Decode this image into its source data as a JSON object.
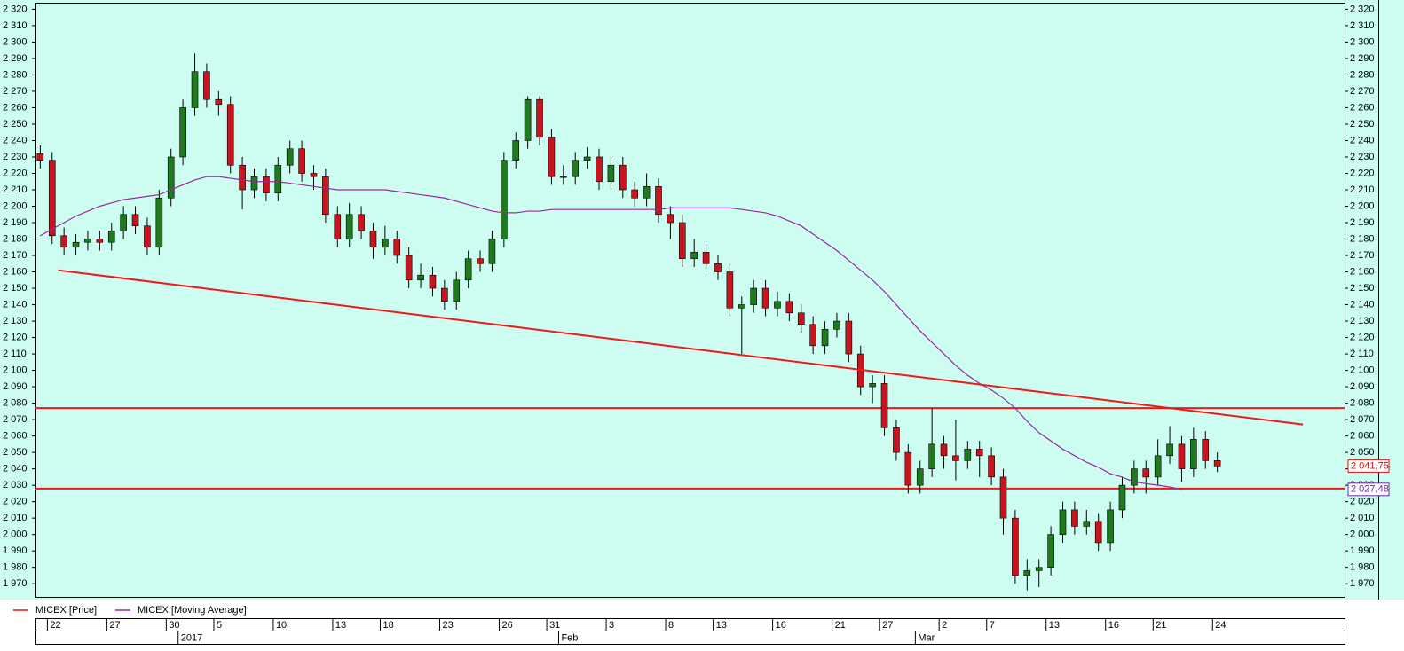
{
  "chart_data": {
    "type": "candlestick",
    "categories": [
      null,
      "22",
      null,
      null,
      null,
      null,
      "27",
      null,
      null,
      null,
      null,
      "30",
      null,
      null,
      null,
      "5",
      null,
      null,
      null,
      null,
      "10",
      null,
      null,
      null,
      null,
      "13",
      null,
      null,
      null,
      "18",
      null,
      null,
      null,
      null,
      "23",
      null,
      null,
      null,
      null,
      "26",
      null,
      null,
      null,
      "31",
      null,
      null,
      null,
      null,
      "3",
      null,
      null,
      null,
      null,
      "8",
      null,
      null,
      null,
      "13",
      null,
      null,
      null,
      null,
      "16",
      null,
      null,
      null,
      null,
      "21",
      null,
      null,
      null,
      "27",
      null,
      null,
      null,
      null,
      "2",
      null,
      null,
      null,
      "7",
      null,
      null,
      null,
      null,
      "13",
      null,
      null,
      null,
      null,
      "16",
      null,
      null,
      null,
      "21",
      null,
      null,
      null,
      null,
      "24"
    ],
    "months": [
      null,
      null,
      null,
      null,
      null,
      null,
      null,
      null,
      null,
      null,
      null,
      null,
      "2017",
      null,
      null,
      null,
      null,
      null,
      null,
      null,
      null,
      null,
      null,
      null,
      null,
      null,
      null,
      null,
      null,
      null,
      null,
      null,
      null,
      null,
      null,
      null,
      null,
      null,
      null,
      null,
      null,
      null,
      null,
      null,
      "Feb",
      null,
      null,
      null,
      null,
      null,
      null,
      null,
      null,
      null,
      null,
      null,
      null,
      null,
      null,
      null,
      null,
      null,
      null,
      null,
      null,
      null,
      null,
      null,
      null,
      null,
      null,
      null,
      null,
      null,
      "Mar",
      null,
      null,
      null,
      null,
      null,
      null,
      null,
      null,
      null,
      null,
      null,
      null,
      null,
      null,
      null,
      null,
      null,
      null,
      null,
      null,
      null,
      null,
      null,
      null,
      null
    ],
    "xlim": [
      -0.4,
      109.7
    ],
    "ylim": [
      1962,
      2324
    ],
    "yticks": [
      {
        "value": 1970,
        "label": "1 970"
      },
      {
        "value": 1980,
        "label": "1 980"
      },
      {
        "value": 1990,
        "label": "1 990"
      },
      {
        "value": 2000,
        "label": "2 000"
      },
      {
        "value": 2010,
        "label": "2 010"
      },
      {
        "value": 2020,
        "label": "2 020"
      },
      {
        "value": 2030,
        "label": "2 030"
      },
      {
        "value": 2040,
        "label": "2 040"
      },
      {
        "value": 2050,
        "label": "2 050"
      },
      {
        "value": 2060,
        "label": "2 060"
      },
      {
        "value": 2070,
        "label": "2 070"
      },
      {
        "value": 2080,
        "label": "2 080"
      },
      {
        "value": 2090,
        "label": "2 090"
      },
      {
        "value": 2100,
        "label": "2 100"
      },
      {
        "value": 2110,
        "label": "2 110"
      },
      {
        "value": 2120,
        "label": "2 120"
      },
      {
        "value": 2130,
        "label": "2 130"
      },
      {
        "value": 2140,
        "label": "2 140"
      },
      {
        "value": 2150,
        "label": "2 150"
      },
      {
        "value": 2160,
        "label": "2 160"
      },
      {
        "value": 2170,
        "label": "2 170"
      },
      {
        "value": 2180,
        "label": "2 180"
      },
      {
        "value": 2190,
        "label": "2 190"
      },
      {
        "value": 2200,
        "label": "2 200"
      },
      {
        "value": 2210,
        "label": "2 210"
      },
      {
        "value": 2220,
        "label": "2 220"
      },
      {
        "value": 2230,
        "label": "2 230"
      },
      {
        "value": 2240,
        "label": "2 240"
      },
      {
        "value": 2250,
        "label": "2 250"
      },
      {
        "value": 2260,
        "label": "2 260"
      },
      {
        "value": 2270,
        "label": "2 270"
      },
      {
        "value": 2280,
        "label": "2 280"
      },
      {
        "value": 2290,
        "label": "2 290"
      },
      {
        "value": 2300,
        "label": "2 300"
      },
      {
        "value": 2310,
        "label": "2 310"
      },
      {
        "value": 2320,
        "label": "2 320"
      }
    ],
    "up_color": "#1f7a1f",
    "down_color": "#c8141e",
    "series": [
      {
        "name": "MICEX [Price]",
        "color": "#e01010",
        "open": [
          2232,
          2228,
          2182,
          2175,
          2178,
          2180,
          2178,
          2185,
          2195,
          2188,
          2175,
          2205,
          2230,
          2260,
          2282,
          2265,
          2262,
          2225,
          2210,
          2218,
          2208,
          2225,
          2235,
          2220,
          2218,
          2195,
          2180,
          2195,
          2185,
          2175,
          2180,
          2170,
          2155,
          2158,
          2150,
          2142,
          2155,
          2168,
          2165,
          2180,
          2228,
          2240,
          2265,
          2242,
          2218,
          2218,
          2228,
          2230,
          2215,
          2225,
          2210,
          2205,
          2212,
          2195,
          2190,
          2168,
          2172,
          2165,
          2160,
          2138,
          2140,
          2150,
          2138,
          2142,
          2135,
          2128,
          2115,
          2125,
          2130,
          2110,
          2090,
          2092,
          2065,
          2050,
          2030,
          2040,
          2055,
          2048,
          2045,
          2052,
          2048,
          2035,
          2010,
          1975,
          1978,
          1980,
          2000,
          2015,
          2005,
          2008,
          1995,
          2015,
          2030,
          2040,
          2035,
          2048,
          2055,
          2040,
          2058,
          2045
        ],
        "high": [
          2237,
          2233,
          2187,
          2183,
          2185,
          2185,
          2190,
          2200,
          2200,
          2193,
          2210,
          2235,
          2265,
          2293,
          2287,
          2270,
          2267,
          2230,
          2223,
          2223,
          2230,
          2240,
          2240,
          2225,
          2223,
          2200,
          2202,
          2200,
          2190,
          2188,
          2185,
          2175,
          2165,
          2163,
          2155,
          2160,
          2173,
          2173,
          2185,
          2233,
          2245,
          2267,
          2267,
          2247,
          2225,
          2233,
          2236,
          2235,
          2230,
          2230,
          2215,
          2220,
          2217,
          2200,
          2195,
          2180,
          2177,
          2170,
          2165,
          2145,
          2155,
          2155,
          2148,
          2147,
          2140,
          2133,
          2130,
          2135,
          2135,
          2115,
          2097,
          2097,
          2070,
          2055,
          2045,
          2077,
          2060,
          2070,
          2057,
          2057,
          2053,
          2040,
          2015,
          1985,
          1985,
          2005,
          2020,
          2020,
          2015,
          2013,
          2020,
          2035,
          2045,
          2045,
          2058,
          2066,
          2060,
          2065,
          2063,
          2050
        ],
        "low": [
          2223,
          2177,
          2170,
          2170,
          2173,
          2173,
          2173,
          2180,
          2183,
          2170,
          2170,
          2200,
          2225,
          2255,
          2260,
          2255,
          2220,
          2198,
          2205,
          2203,
          2203,
          2220,
          2215,
          2210,
          2190,
          2175,
          2175,
          2180,
          2168,
          2170,
          2165,
          2150,
          2150,
          2145,
          2137,
          2137,
          2150,
          2160,
          2160,
          2175,
          2223,
          2235,
          2237,
          2213,
          2213,
          2213,
          2223,
          2210,
          2210,
          2205,
          2200,
          2200,
          2190,
          2180,
          2163,
          2163,
          2160,
          2155,
          2133,
          2110,
          2135,
          2133,
          2133,
          2130,
          2123,
          2110,
          2110,
          2120,
          2105,
          2085,
          2080,
          2060,
          2045,
          2025,
          2025,
          2035,
          2040,
          2033,
          2040,
          2035,
          2030,
          2000,
          1970,
          1966,
          1968,
          1975,
          1995,
          2000,
          2000,
          1990,
          1990,
          2010,
          2025,
          2025,
          2030,
          2043,
          2032,
          2035,
          2040,
          2038
        ],
        "close": [
          2228,
          2182,
          2175,
          2178,
          2180,
          2178,
          2185,
          2195,
          2188,
          2175,
          2205,
          2230,
          2260,
          2282,
          2265,
          2262,
          2225,
          2210,
          2218,
          2208,
          2225,
          2235,
          2220,
          2218,
          2195,
          2180,
          2195,
          2185,
          2175,
          2180,
          2170,
          2155,
          2158,
          2150,
          2142,
          2155,
          2168,
          2165,
          2180,
          2228,
          2240,
          2265,
          2242,
          2218,
          2218,
          2228,
          2230,
          2215,
          2225,
          2210,
          2205,
          2212,
          2195,
          2190,
          2168,
          2172,
          2165,
          2160,
          2138,
          2140,
          2150,
          2138,
          2142,
          2135,
          2128,
          2115,
          2125,
          2130,
          2110,
          2090,
          2092,
          2065,
          2050,
          2030,
          2040,
          2055,
          2048,
          2045,
          2052,
          2048,
          2035,
          2010,
          1975,
          1978,
          1980,
          2000,
          2015,
          2005,
          2008,
          1995,
          2015,
          2030,
          2040,
          2035,
          2048,
          2055,
          2040,
          2058,
          2045,
          2041.75
        ]
      },
      {
        "name": "MICEX [Moving Average]",
        "color": "#9a2a9a",
        "values": [
          2182,
          2186,
          2190,
          2194,
          2197,
          2200,
          2202,
          2204,
          2205,
          2206,
          2207,
          2210,
          2213,
          2216,
          2218,
          2218,
          2217,
          2216,
          2215,
          2215,
          2215,
          2214,
          2213,
          2212,
          2211,
          2210,
          2210,
          2210,
          2210,
          2210,
          2209,
          2208,
          2207,
          2206,
          2205,
          2203,
          2201,
          2199,
          2197,
          2196,
          2196,
          2197,
          2197,
          2198,
          2198,
          2198,
          2198,
          2198,
          2198,
          2198,
          2198,
          2198,
          2198,
          2199,
          2199,
          2199,
          2199,
          2199,
          2199,
          2198,
          2197,
          2196,
          2194,
          2191,
          2188,
          2183,
          2178,
          2173,
          2167,
          2161,
          2155,
          2148,
          2140,
          2132,
          2124,
          2117,
          2110,
          2103,
          2097,
          2092,
          2088,
          2083,
          2077,
          2069,
          2062,
          2057,
          2052,
          2048,
          2044,
          2041,
          2037,
          2035,
          2032,
          2031,
          2030,
          2029,
          2027.48,
          null,
          null,
          null
        ]
      }
    ],
    "trend_lines": [
      {
        "x": [
          1.5,
          106.2
        ],
        "y": [
          2161,
          2067
        ],
        "color": "#f01818"
      }
    ],
    "horizontal_lines": [
      {
        "value": 2077,
        "color": "#f01818"
      },
      {
        "value": 2028,
        "color": "#f01818"
      }
    ],
    "last_value_labels": [
      {
        "value": 2041.75,
        "label": "2 041,75",
        "color": "#e01010"
      },
      {
        "value": 2027.48,
        "label": "2 027,48",
        "color": "#6a2aa0"
      }
    ]
  }
}
